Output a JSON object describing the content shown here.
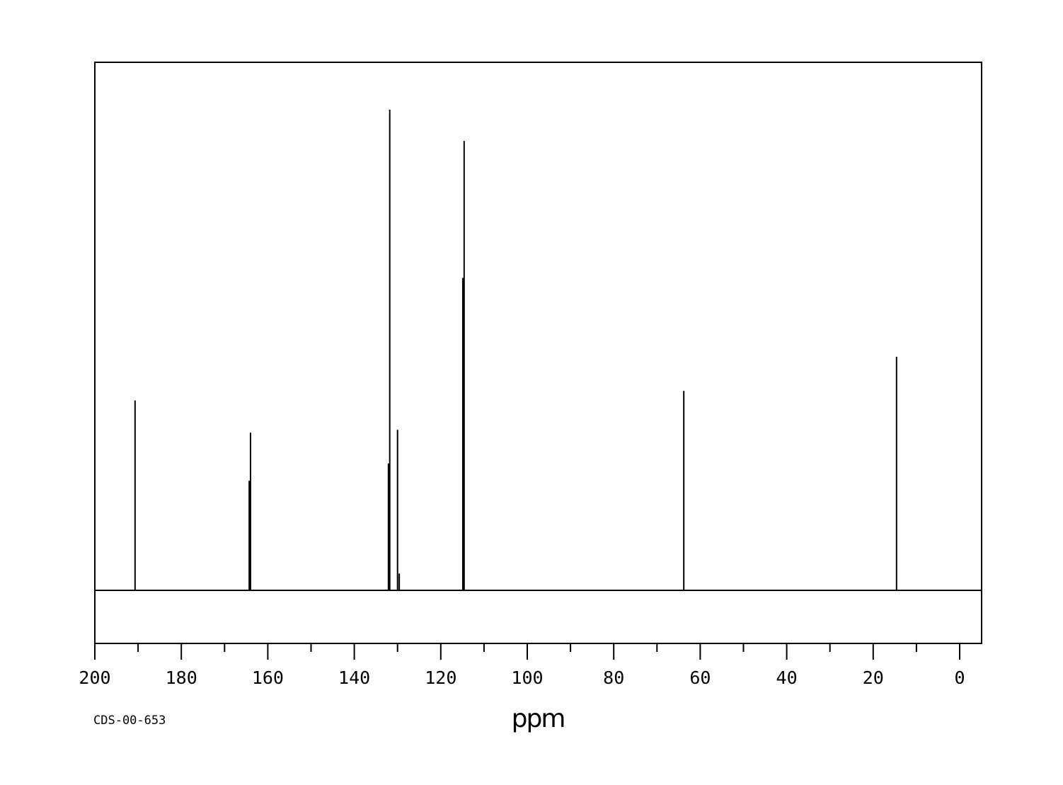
{
  "chart_data": {
    "type": "line",
    "subtype": "13C NMR stick spectrum",
    "xlabel": "ppm",
    "ylabel": "",
    "xlim": [
      200,
      -5
    ],
    "x_reversed": true,
    "xticks": [
      200,
      180,
      160,
      140,
      120,
      100,
      80,
      60,
      40,
      20,
      0
    ],
    "minor_tick_step": 10,
    "grid": false,
    "legend": "none",
    "y_units": "relative intensity (%)",
    "peaks": [
      {
        "ppm": 190.7,
        "intensity": 39.5
      },
      {
        "ppm": 164.3,
        "intensity": 22.8
      },
      {
        "ppm": 164.0,
        "intensity": 32.8
      },
      {
        "ppm": 132.1,
        "intensity": 26.4
      },
      {
        "ppm": 131.8,
        "intensity": 100
      },
      {
        "ppm": 130.0,
        "intensity": 33.4
      },
      {
        "ppm": 129.6,
        "intensity": 3.5
      },
      {
        "ppm": 114.9,
        "intensity": 65.0
      },
      {
        "ppm": 114.6,
        "intensity": 93.5
      },
      {
        "ppm": 63.8,
        "intensity": 41.5
      },
      {
        "ppm": 14.6,
        "intensity": 48.6
      }
    ],
    "annotation": "CDS-00-653",
    "line_color": "#000000"
  }
}
